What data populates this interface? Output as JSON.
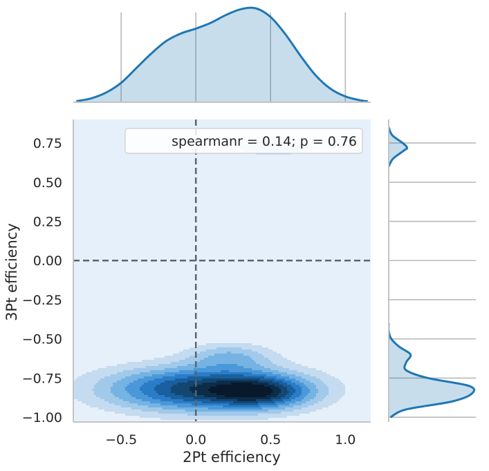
{
  "chart_data": {
    "type": "jointplot-kde",
    "xlabel": "2Pt efficiency",
    "ylabel": "3Pt efficiency",
    "xlim": [
      -0.82,
      1.17
    ],
    "ylim": [
      -1.03,
      0.9
    ],
    "xticks": [
      -0.5,
      0.0,
      0.5,
      1.0
    ],
    "xtick_labels": [
      "−0.5",
      "0.0",
      "0.5",
      "1.0"
    ],
    "yticks": [
      0.75,
      0.5,
      0.25,
      0.0,
      -0.25,
      -0.5,
      -0.75,
      -1.0
    ],
    "ytick_labels": [
      "0.75",
      "0.50",
      "0.25",
      "0.00",
      "−0.25",
      "−0.50",
      "−0.75",
      "−1.00"
    ],
    "annotation": "spearmanr = 0.14; p = 0.76",
    "reference_lines": {
      "x": 0.0,
      "y": 0.0
    },
    "joint_clusters": [
      {
        "cx": 0.05,
        "cy": -0.82,
        "sx": 0.45,
        "sy": 0.1,
        "w": 1.0
      },
      {
        "cx": 0.45,
        "cy": -0.84,
        "sx": 0.22,
        "sy": 0.07,
        "w": 0.6
      },
      {
        "cx": 0.23,
        "cy": -0.61,
        "sx": 0.2,
        "sy": 0.06,
        "w": 0.35
      },
      {
        "cx": 0.52,
        "cy": 0.72,
        "sx": 0.2,
        "sy": 0.04,
        "w": 0.25
      }
    ],
    "x_marginal_kde": {
      "x": [
        -0.8,
        -0.7,
        -0.6,
        -0.5,
        -0.4,
        -0.3,
        -0.2,
        -0.1,
        0.0,
        0.1,
        0.2,
        0.3,
        0.4,
        0.5,
        0.6,
        0.7,
        0.8,
        0.9,
        1.0,
        1.1,
        1.15
      ],
      "density": [
        0.01,
        0.04,
        0.1,
        0.2,
        0.35,
        0.5,
        0.63,
        0.71,
        0.76,
        0.82,
        0.9,
        0.96,
        0.97,
        0.88,
        0.7,
        0.48,
        0.28,
        0.14,
        0.06,
        0.02,
        0.01
      ]
    },
    "y_marginal_kde": {
      "y": [
        -1.0,
        -0.95,
        -0.9,
        -0.85,
        -0.8,
        -0.75,
        -0.7,
        -0.65,
        -0.6,
        -0.55,
        -0.5,
        -0.45,
        -0.4,
        0.6,
        0.65,
        0.7,
        0.72,
        0.75,
        0.8,
        0.85
      ],
      "density": [
        0.02,
        0.2,
        0.72,
        0.95,
        0.92,
        0.45,
        0.2,
        0.2,
        0.25,
        0.12,
        0.03,
        0.0,
        0.0,
        0.0,
        0.05,
        0.17,
        0.21,
        0.16,
        0.04,
        0.0
      ]
    },
    "grid": true,
    "legend_placement": "top-right",
    "colors": {
      "accent": "#1f77b4",
      "marginal_fill": "#c8d9eb",
      "joint_background": "#e6f0fa",
      "reference_line": "#5b6470",
      "levels": [
        "#e6f0fa",
        "#c4dbf0",
        "#a1c9ea",
        "#75b3e3",
        "#4a98d9",
        "#2a7cc7",
        "#1a5f9e",
        "#134673",
        "#0c2c48",
        "#07192a"
      ]
    }
  }
}
